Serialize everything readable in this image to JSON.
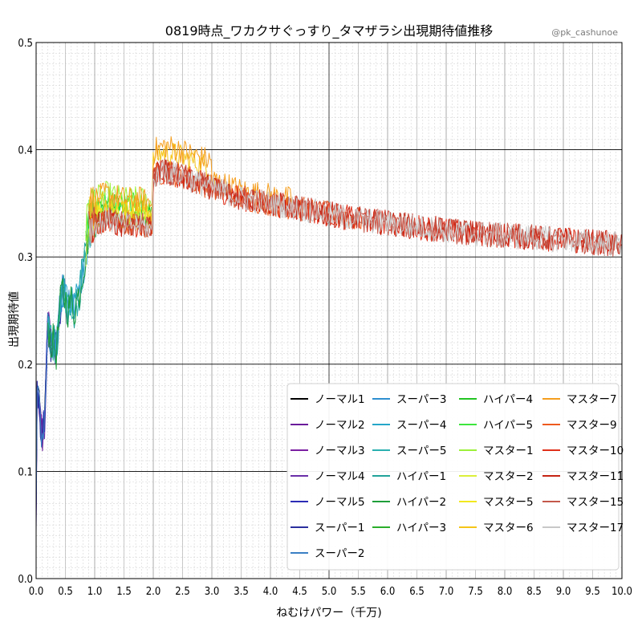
{
  "chart_data": {
    "type": "line",
    "title": "0819時点_ワカクサぐっすり_タマザラシ出現期待値推移",
    "credit": "@pk_cashunoe",
    "xlabel": "ねむけパワー（千万)",
    "ylabel": "出現期待値",
    "xlim": [
      0.0,
      10.0
    ],
    "ylim": [
      0.0,
      0.5
    ],
    "xticks": [
      "0.0",
      "0.5",
      "1.0",
      "1.5",
      "2.0",
      "2.5",
      "3.0",
      "3.5",
      "4.0",
      "4.5",
      "5.0",
      "5.5",
      "6.0",
      "6.5",
      "7.0",
      "7.5",
      "8.0",
      "8.5",
      "9.0",
      "9.5",
      "10.0"
    ],
    "yticks": [
      "0.0",
      "0.1",
      "0.2",
      "0.3",
      "0.4",
      "0.5"
    ],
    "grid": true,
    "legend_position": "lower-right",
    "legend_columns": 4,
    "trend_x": [
      0.0,
      0.02,
      0.05,
      0.1,
      0.15,
      0.2,
      0.25,
      0.3,
      0.35,
      0.4,
      0.45,
      0.5,
      0.55,
      0.6,
      0.65,
      0.7,
      0.75,
      0.8,
      0.85,
      0.9,
      1.0,
      1.2,
      1.5,
      1.8,
      1.98,
      2.0,
      2.2,
      2.5,
      3.0,
      3.5,
      4.0,
      4.5,
      5.0,
      5.5,
      6.0,
      6.5,
      7.0,
      7.5,
      8.0,
      8.5,
      9.0,
      9.5,
      10.0
    ],
    "trend_y": [
      0.06,
      0.19,
      0.16,
      0.13,
      0.15,
      0.24,
      0.22,
      0.22,
      0.21,
      0.25,
      0.27,
      0.26,
      0.25,
      0.26,
      0.25,
      0.26,
      0.27,
      0.29,
      0.3,
      0.325,
      0.33,
      0.335,
      0.33,
      0.33,
      0.325,
      0.375,
      0.38,
      0.375,
      0.365,
      0.355,
      0.35,
      0.345,
      0.34,
      0.335,
      0.332,
      0.328,
      0.325,
      0.322,
      0.32,
      0.318,
      0.316,
      0.314,
      0.312
    ],
    "series": [
      {
        "name": "ノーマル1",
        "color": "#000000"
      },
      {
        "name": "ノーマル2",
        "color": "#6a1b9a"
      },
      {
        "name": "ノーマル3",
        "color": "#7b1fa2"
      },
      {
        "name": "ノーマル4",
        "color": "#6a2fa8"
      },
      {
        "name": "ノーマル5",
        "color": "#2c2cb5"
      },
      {
        "name": "スーパー1",
        "color": "#2b2f9e"
      },
      {
        "name": "スーパー2",
        "color": "#3a7fc4"
      },
      {
        "name": "スーパー3",
        "color": "#2e8fd0"
      },
      {
        "name": "スーパー4",
        "color": "#25a6c9"
      },
      {
        "name": "スーパー5",
        "color": "#2ab0b0"
      },
      {
        "name": "ハイパー1",
        "color": "#22a39a"
      },
      {
        "name": "ハイパー2",
        "color": "#1e9e3a"
      },
      {
        "name": "ハイパー3",
        "color": "#2aae2a"
      },
      {
        "name": "ハイパー4",
        "color": "#22c422"
      },
      {
        "name": "ハイパー5",
        "color": "#3de63d"
      },
      {
        "name": "マスター1",
        "color": "#9cf03a"
      },
      {
        "name": "マスター2",
        "color": "#dcef3a"
      },
      {
        "name": "マスター5",
        "color": "#f2e81e"
      },
      {
        "name": "マスター6",
        "color": "#f5c518"
      },
      {
        "name": "マスター7",
        "color": "#f59e1e"
      },
      {
        "name": "マスター9",
        "color": "#ee5a1e"
      },
      {
        "name": "マスター10",
        "color": "#e0301a"
      },
      {
        "name": "マスター11",
        "color": "#c62414"
      },
      {
        "name": "マスター15",
        "color": "#c4584a"
      },
      {
        "name": "マスター17",
        "color": "#c8c8c8"
      }
    ]
  }
}
